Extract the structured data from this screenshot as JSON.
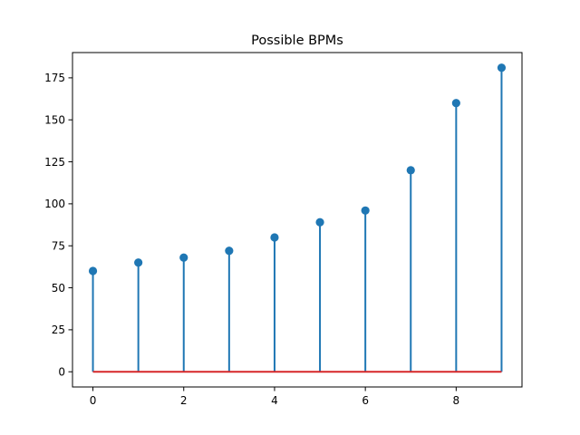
{
  "chart_data": {
    "type": "stem",
    "title": "Possible BPMs",
    "xlabel": "",
    "ylabel": "",
    "x": [
      0,
      1,
      2,
      3,
      4,
      5,
      6,
      7,
      8,
      9
    ],
    "values": [
      60,
      65,
      68,
      72,
      80,
      89,
      96,
      120,
      160,
      181
    ],
    "xlim": [
      -0.45,
      9.45
    ],
    "ylim": [
      -9.05,
      190.05
    ],
    "xticks": [
      0,
      2,
      4,
      6,
      8
    ],
    "yticks": [
      0,
      25,
      50,
      75,
      100,
      125,
      150,
      175
    ],
    "baseline": 0,
    "grid": false,
    "colors": {
      "stem": "#1f77b4",
      "marker": "#1f77b4",
      "baseline": "#d62728"
    }
  }
}
